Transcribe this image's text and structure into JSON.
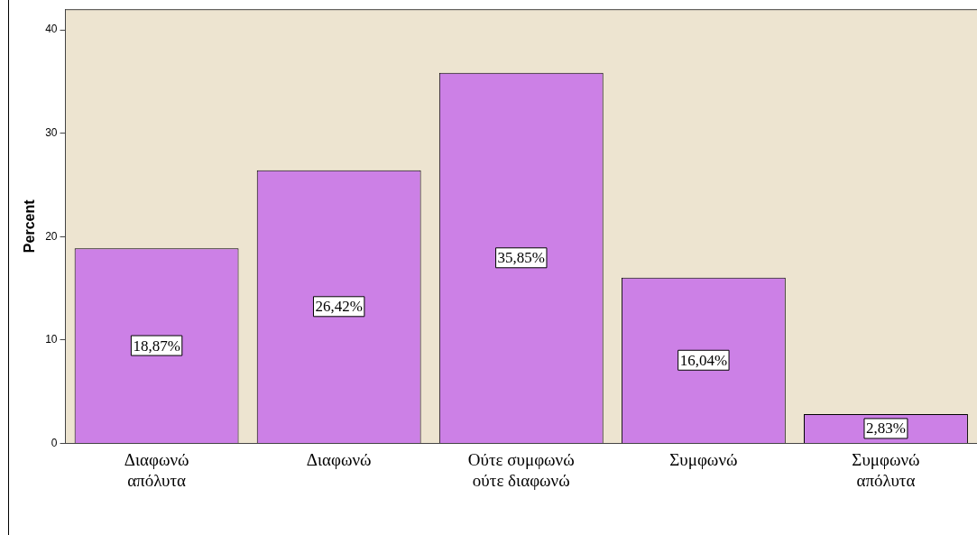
{
  "chart_data": {
    "type": "bar",
    "ylabel": "Percent",
    "categories": [
      "Διαφωνώ απόλυτα",
      "Διαφωνώ",
      "Ούτε συμφωνώ ούτε διαφωνώ",
      "Συμφωνώ",
      "Συμφωνώ απόλυτα"
    ],
    "values": [
      18.87,
      26.42,
      35.85,
      16.04,
      2.83
    ],
    "value_labels": [
      "18,87%",
      "26,42%",
      "35,85%",
      "16,04%",
      "2,83%"
    ],
    "color": "#cc80e6",
    "ylim": [
      0,
      42
    ],
    "yticks": [
      0,
      10,
      20,
      30,
      40
    ],
    "grid": false,
    "legend": false
  }
}
